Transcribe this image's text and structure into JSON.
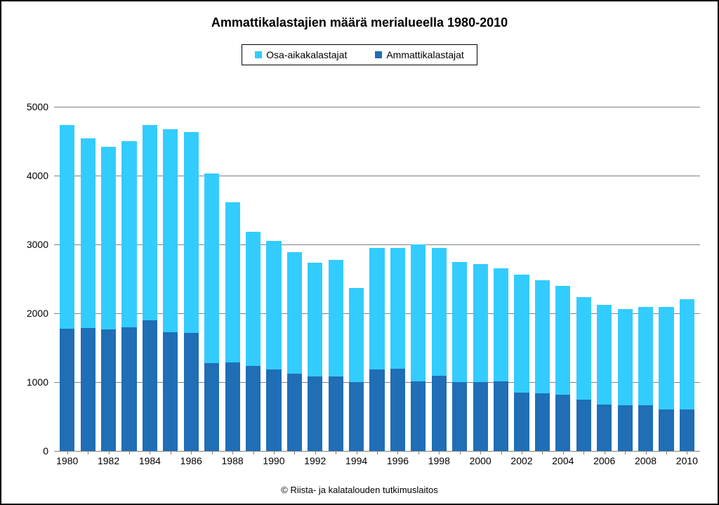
{
  "chart": {
    "type": "stacked-bar",
    "title": "Ammattikalastajien määrä merialueella 1980-2010",
    "title_fontsize": 18,
    "footer": "© Riista- ja kalatalouden tutkimuslaitos",
    "background_color": "#ffffff",
    "border_color": "#000000",
    "grid_color": "#808080",
    "text_color": "#000000",
    "label_fontsize": 14,
    "ylim": [
      0,
      5000
    ],
    "ytick_step": 1000,
    "yticks": [
      0,
      1000,
      2000,
      3000,
      4000,
      5000
    ],
    "x_label_step": 2,
    "bar_width_ratio": 0.72,
    "legend": {
      "items": [
        {
          "label": "Osa-aikakalastajat",
          "color": "#33ccff"
        },
        {
          "label": "Ammattikalastajat",
          "color": "#1f6eb6"
        }
      ],
      "border_color": "#000000"
    },
    "series": [
      {
        "name": "Ammattikalastajat",
        "color": "#1f6eb6"
      },
      {
        "name": "Osa-aikakalastajat",
        "color": "#33ccff"
      }
    ],
    "years": [
      1980,
      1981,
      1982,
      1983,
      1984,
      1985,
      1986,
      1987,
      1988,
      1989,
      1990,
      1991,
      1992,
      1993,
      1994,
      1995,
      1996,
      1997,
      1998,
      1999,
      2000,
      2001,
      2002,
      2003,
      2004,
      2005,
      2006,
      2007,
      2008,
      2009,
      2010
    ],
    "data": [
      {
        "year": 1980,
        "ammatti": 1780,
        "osa": 2950
      },
      {
        "year": 1981,
        "ammatti": 1790,
        "osa": 2750
      },
      {
        "year": 1982,
        "ammatti": 1770,
        "osa": 2650
      },
      {
        "year": 1983,
        "ammatti": 1800,
        "osa": 2700
      },
      {
        "year": 1984,
        "ammatti": 1900,
        "osa": 2830
      },
      {
        "year": 1985,
        "ammatti": 1720,
        "osa": 2950
      },
      {
        "year": 1986,
        "ammatti": 1710,
        "osa": 2920
      },
      {
        "year": 1987,
        "ammatti": 1280,
        "osa": 2750
      },
      {
        "year": 1988,
        "ammatti": 1290,
        "osa": 2320
      },
      {
        "year": 1989,
        "ammatti": 1230,
        "osa": 1950
      },
      {
        "year": 1990,
        "ammatti": 1180,
        "osa": 1870
      },
      {
        "year": 1991,
        "ammatti": 1120,
        "osa": 1770
      },
      {
        "year": 1992,
        "ammatti": 1080,
        "osa": 1660
      },
      {
        "year": 1993,
        "ammatti": 1080,
        "osa": 1700
      },
      {
        "year": 1994,
        "ammatti": 1000,
        "osa": 1370
      },
      {
        "year": 1995,
        "ammatti": 1180,
        "osa": 1770
      },
      {
        "year": 1996,
        "ammatti": 1190,
        "osa": 1760
      },
      {
        "year": 1997,
        "ammatti": 1010,
        "osa": 1990
      },
      {
        "year": 1998,
        "ammatti": 1090,
        "osa": 1860
      },
      {
        "year": 1999,
        "ammatti": 1000,
        "osa": 1740
      },
      {
        "year": 2000,
        "ammatti": 1000,
        "osa": 1710
      },
      {
        "year": 2001,
        "ammatti": 1010,
        "osa": 1640
      },
      {
        "year": 2002,
        "ammatti": 850,
        "osa": 1710
      },
      {
        "year": 2003,
        "ammatti": 840,
        "osa": 1640
      },
      {
        "year": 2004,
        "ammatti": 820,
        "osa": 1580
      },
      {
        "year": 2005,
        "ammatti": 750,
        "osa": 1480
      },
      {
        "year": 2006,
        "ammatti": 670,
        "osa": 1450
      },
      {
        "year": 2007,
        "ammatti": 660,
        "osa": 1400
      },
      {
        "year": 2008,
        "ammatti": 660,
        "osa": 1430
      },
      {
        "year": 2009,
        "ammatti": 600,
        "osa": 1490
      },
      {
        "year": 2010,
        "ammatti": 600,
        "osa": 1600
      }
    ]
  }
}
